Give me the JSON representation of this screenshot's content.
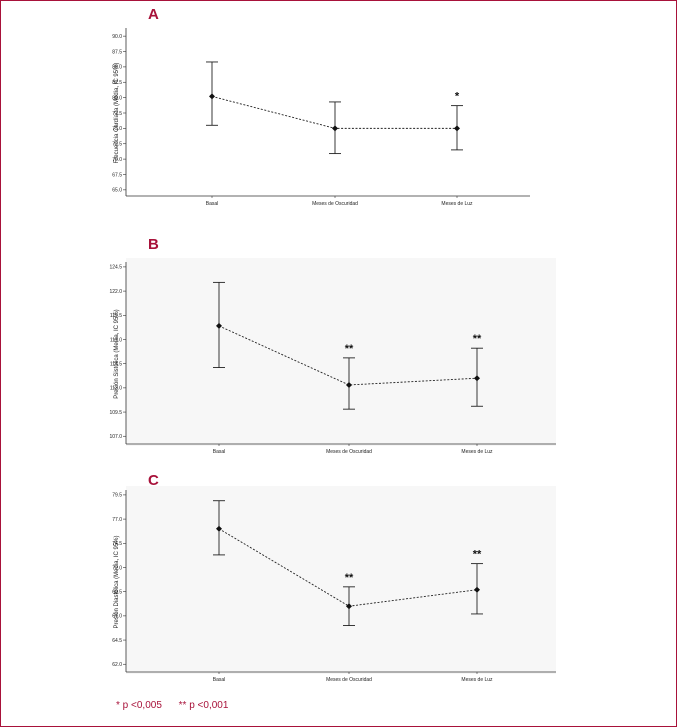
{
  "footnote": {
    "one_star": "* p <0,005",
    "two_star": "** p <0,001"
  },
  "chart_data": [
    {
      "panel": "A",
      "type": "line",
      "ylabel": "Frecuencia Cardíaca (Media, IC 95%)",
      "categories": [
        "Basal",
        "Meses de Oscuridad",
        "Meses de Luz"
      ],
      "yticks": [
        "90.0",
        "87.5",
        "85.0",
        "82.5",
        "80.0",
        "77.5",
        "75.0",
        "72.5",
        "70.0",
        "67.5",
        "65.0"
      ],
      "ylim": [
        64,
        91
      ],
      "values": [
        80.2,
        75.0,
        75.0
      ],
      "ci_low": [
        75.5,
        70.9,
        71.5
      ],
      "ci_high": [
        85.8,
        79.3,
        78.7
      ],
      "significance": [
        "",
        "",
        "*"
      ],
      "background": "#ffffff"
    },
    {
      "panel": "B",
      "type": "line",
      "ylabel": "Presión Sistólica (Media, IC 95%)",
      "categories": [
        "Basal",
        "Meses de Oscuridad",
        "Meses de Luz"
      ],
      "yticks": [
        "124.5",
        "122.0",
        "119.5",
        "117.0",
        "114.5",
        "112.0",
        "109.5",
        "107.0"
      ],
      "ylim": [
        106.2,
        124.8
      ],
      "values": [
        118.4,
        112.3,
        113.0
      ],
      "ci_low": [
        114.1,
        109.8,
        110.1
      ],
      "ci_high": [
        122.9,
        115.1,
        116.1
      ],
      "significance": [
        "",
        "**",
        "**"
      ],
      "background": "#f7f7f7"
    },
    {
      "panel": "C",
      "type": "line",
      "ylabel": "Presión Diastólica (Media, IC 95%)",
      "categories": [
        "Basal",
        "Meses de Oscuridad",
        "Meses de Luz"
      ],
      "yticks": [
        "79.5",
        "77.0",
        "74.5",
        "72.0",
        "69.5",
        "67.0",
        "64.5",
        "62.0"
      ],
      "ylim": [
        61.2,
        79.8
      ],
      "values": [
        76.0,
        68.0,
        69.7
      ],
      "ci_low": [
        73.3,
        66.0,
        67.2
      ],
      "ci_high": [
        78.9,
        70.0,
        72.4
      ],
      "significance": [
        "",
        "**",
        "**"
      ],
      "background": "#f7f7f7"
    }
  ]
}
